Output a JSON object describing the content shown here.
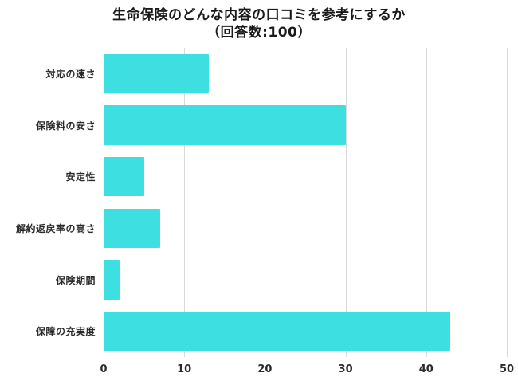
{
  "title": "生命保険のどんな内容の口コミを参考にするか",
  "subtitle": "（回答数:100）",
  "chart_data": {
    "type": "bar",
    "orientation": "horizontal",
    "title": "生命保険のどんな内容の口コミを参考にするか（回答数:100）",
    "categories": [
      "対応の速さ",
      "保険料の安さ",
      "安定性",
      "解約返戻率の高さ",
      "保険期間",
      "保障の充実度"
    ],
    "values": [
      13,
      30,
      5,
      7,
      2,
      43
    ],
    "xlabel": "",
    "ylabel": "",
    "xlim": [
      0,
      50
    ],
    "xticks": [
      0,
      10,
      20,
      30,
      40,
      50
    ],
    "grid": true,
    "legend": false,
    "bar_color": "#3EDFE0"
  },
  "colors": {
    "bar": "#3EDFE0",
    "grid": "#d9d9d9",
    "text": "#2b2b2b",
    "background": "#ffffff"
  }
}
